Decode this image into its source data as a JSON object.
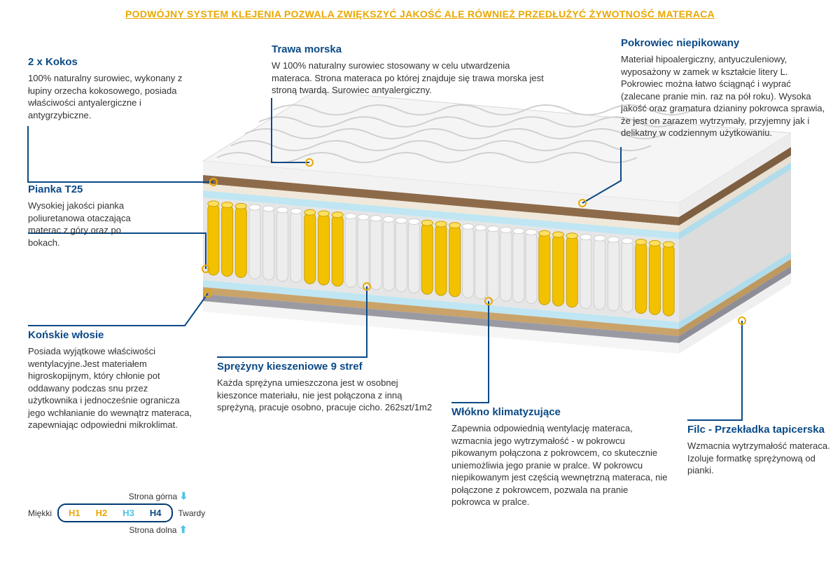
{
  "colors": {
    "navy": "#0b4a86",
    "accent": "#e9a800",
    "lightblue": "#4fc3e8",
    "grey": "#333333",
    "guideline": "#0b4a86"
  },
  "header": {
    "text": "PODWÓJNY SYSTEM KLEJENIA POZWALA ZWIĘKSZYĆ JAKOŚĆ ALE RÓWNIEŻ PRZEDŁUŻYĆ ŻYWOTNOŚĆ MATERACA"
  },
  "blocks": {
    "kokos": {
      "title": "2 x Kokos",
      "body": "100% naturalny surowiec, wykonany z łupiny orzecha kokosowego, posiada właściwości antyalergiczne i antygrzybiczne."
    },
    "trawa": {
      "title": "Trawa morska",
      "body": "W 100% naturalny surowiec stosowany w celu utwardzenia materaca. Strona materaca po której znajduje się trawa morska jest stroną twardą. Surowiec antyalergiczny."
    },
    "pokrowiec": {
      "title": "Pokrowiec  niepikowany",
      "body": "Materiał hipoalergiczny, antyuczuleniowy, wyposażony w zamek w kształcie litery L. Pokrowiec można łatwo ściągnąć i wyprać (zalecane pranie min. raz na pół roku). Wysoka jakość oraz gramatura dzianiny pokrowca sprawia, że jest on zarazem wytrzymały, przyjemny jak i delikatny w codziennym użytkowaniu."
    },
    "pianka": {
      "title": "Pianka T25",
      "body": "Wysokiej jakości pianka poliuretanowa otaczająca materac z góry oraz po bokach."
    },
    "konskie": {
      "title": "Końskie włosie",
      "body": "Posiada wyjątkowe właściwości wentylacyjne.Jest materiałem higroskopijnym, który chłonie pot oddawany podczas snu przez użytkownika i jednocześnie ogranicza jego wchłanianie do wewnątrz materaca, zapewniając odpowiedni mikroklimat."
    },
    "sprezyny": {
      "title": "Sprężyny kieszeniowe 9 stref",
      "body": "Każda sprężyna umieszczona jest w osobnej kieszonce materiału, nie jest połączona z inną sprężyną, pracuje osobno, pracuje cicho. 262szt/1m2"
    },
    "wlokno": {
      "title": "Włókno klimatyzujące",
      "body": "Zapewnia odpowiednią wentylację materaca, wzmacnia jego wytrzymałość - w pokrowcu pikowanym połączona z pokrowcem, co skutecznie uniemożliwia jego pranie w pralce. W pokrowcu niepikowanym jest częścią wewnętrzną materaca, nie połączone z pokrowcem, pozwala na pranie pokrowca w pralce."
    },
    "filc": {
      "title": "Filc - Przekładka tapicerska",
      "body": "Wzmacnia wytrzymałość materaca. Izoluje formatkę sprężynową od pianki."
    }
  },
  "legend": {
    "soft": "Miękki",
    "hard": "Twardy",
    "top": "Strona górna",
    "bottom": "Strona dolna",
    "levels": [
      {
        "label": "H1",
        "color": "#e9a800"
      },
      {
        "label": "H2",
        "color": "#e9a800"
      },
      {
        "label": "H3",
        "color": "#4fc3e8"
      },
      {
        "label": "H4",
        "color": "#0b4a86"
      }
    ]
  },
  "mattress": {
    "spring_zones": [
      "yellow",
      "white",
      "yellow",
      "white",
      "yellow",
      "white",
      "yellow",
      "white",
      "yellow"
    ],
    "zone_widths": [
      60,
      80,
      60,
      110,
      60,
      110,
      60,
      80,
      60
    ]
  }
}
